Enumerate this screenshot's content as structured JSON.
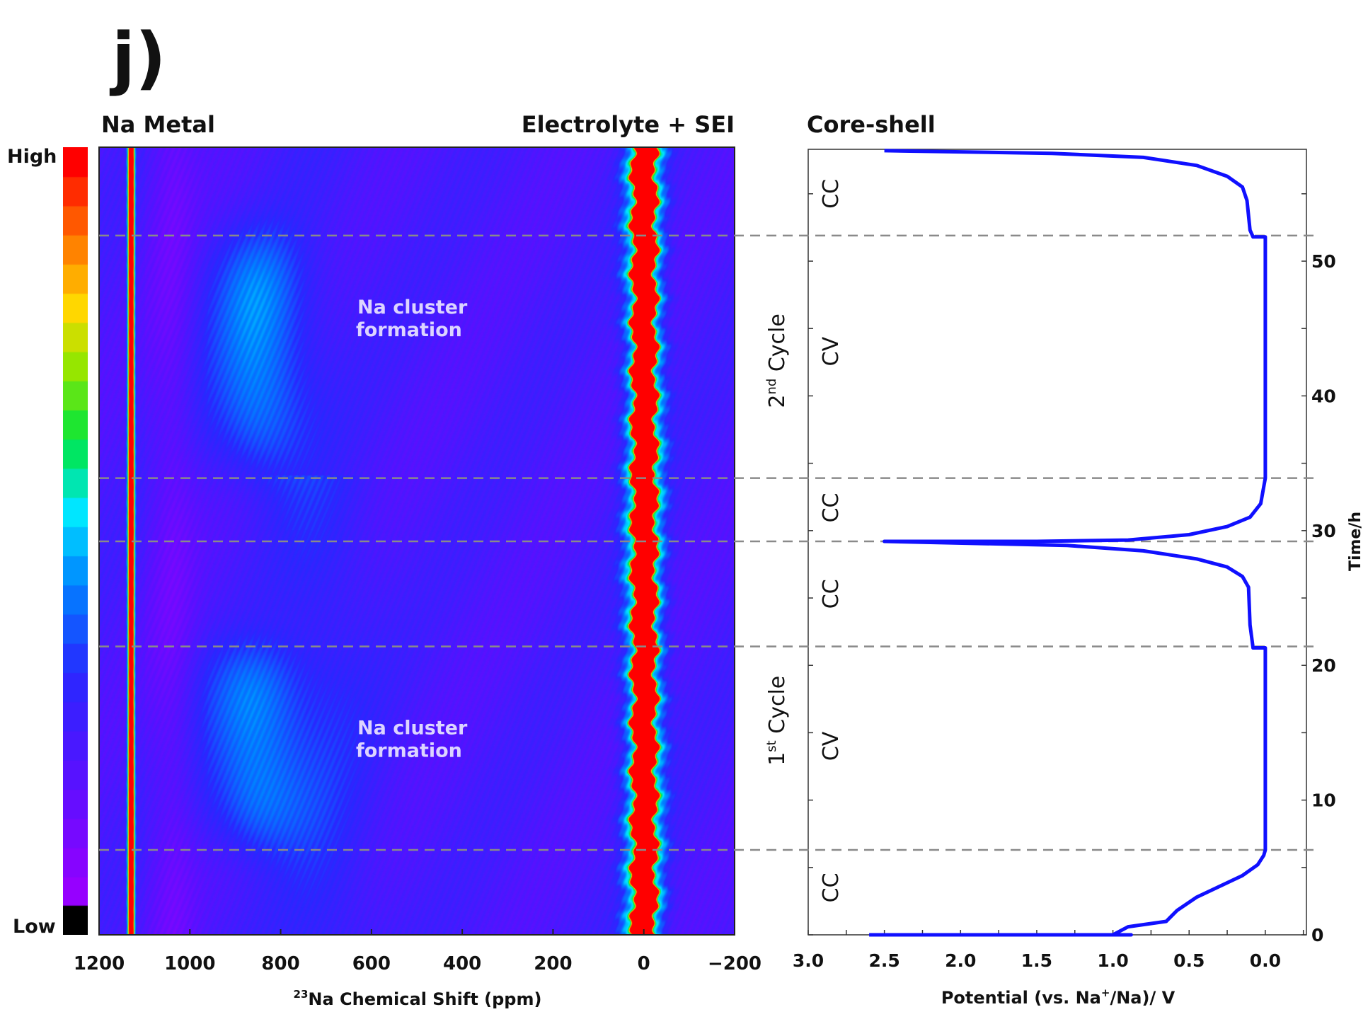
{
  "panel_label": "j)",
  "chart_data": [
    {
      "type": "heatmap",
      "title_left": "Na Metal",
      "title_right": "Electrolyte + SEI",
      "xlabel_sup": "23",
      "xlabel": "Na Chemical Shift (ppm)",
      "xlim": [
        1200,
        -200
      ],
      "xticks": [
        1200,
        1000,
        800,
        600,
        400,
        200,
        0,
        -200
      ],
      "xtick_labels": [
        "1200",
        "1000",
        "800",
        "600",
        "400",
        "200",
        "0",
        "−200"
      ],
      "ylim_h": [
        0,
        58.3
      ],
      "colorbar": {
        "high_label": "High",
        "low_label": "Low"
      },
      "peaks_ppm": {
        "na_metal": 1130,
        "electrolyte_sei": 0
      },
      "annotations": [
        {
          "text_line1": "Na cluster",
          "text_line2": "formation",
          "ppm_center": 850,
          "t_range_h": [
            34,
            52
          ]
        },
        {
          "text_line1": "Na cluster",
          "text_line2": "formation",
          "ppm_center": 860,
          "t_range_h": [
            6.3,
            21.4
          ]
        }
      ]
    },
    {
      "type": "line",
      "title": "Core-shell",
      "xlabel": "Potential (vs. Na",
      "xlabel_sup": "+",
      "xlabel_end": "/Na)/ V",
      "ylabel": "Time/h",
      "xlim": [
        3.0,
        -0.27
      ],
      "ylim": [
        0,
        58.3
      ],
      "xticks": [
        3.0,
        2.5,
        2.0,
        1.5,
        1.0,
        0.5,
        0.0
      ],
      "xtick_labels": [
        "3.0",
        "2.5",
        "2.0",
        "1.5",
        "1.0",
        "0.5",
        "0.0"
      ],
      "yticks": [
        0,
        10,
        20,
        30,
        40,
        50
      ],
      "ytick_labels": [
        "0",
        "10",
        "20",
        "30",
        "40",
        "50"
      ],
      "series": [
        {
          "name": "potential",
          "color": "#1010ff",
          "x": [
            2.6,
            0.88,
            1.0,
            0.9,
            0.65,
            0.58,
            0.45,
            0.3,
            0.15,
            0.05,
            0.01,
            0.0,
            0.0,
            0.08,
            0.1,
            0.11,
            0.15,
            0.25,
            0.45,
            0.8,
            1.3,
            2.5,
            1.5,
            0.9,
            0.5,
            0.25,
            0.1,
            0.03,
            0.0,
            0.0,
            0.08,
            0.1,
            0.12,
            0.15,
            0.25,
            0.45,
            0.8,
            1.4,
            2.5
          ],
          "y": [
            0,
            0,
            0,
            0.6,
            1.0,
            1.8,
            2.8,
            3.6,
            4.4,
            5.2,
            5.9,
            6.3,
            21.3,
            21.3,
            23.0,
            25.8,
            26.6,
            27.3,
            27.9,
            28.5,
            28.9,
            29.2,
            29.2,
            29.3,
            29.7,
            30.3,
            31.0,
            32.0,
            33.9,
            51.8,
            51.8,
            52.3,
            54.5,
            55.5,
            56.3,
            57.1,
            57.7,
            58.0,
            58.2
          ]
        }
      ],
      "phase_boundaries_h": [
        6.3,
        21.4,
        29.2,
        33.9,
        51.9
      ],
      "phase_labels": [
        {
          "text": "CC",
          "t_center": 3.5
        },
        {
          "text": "CV",
          "t_center": 14.0
        },
        {
          "text": "CC",
          "t_center": 25.3
        },
        {
          "text": "CC",
          "t_center": 31.7
        },
        {
          "text": "CV",
          "t_center": 43.3
        },
        {
          "text": "CC",
          "t_center": 55.0
        }
      ],
      "cycle_labels": [
        {
          "num": "1",
          "sup": "st",
          "text": " Cycle",
          "t_center": 15.9
        },
        {
          "num": "2",
          "sup": "nd",
          "text": " Cycle",
          "t_center": 42.6
        }
      ]
    }
  ]
}
